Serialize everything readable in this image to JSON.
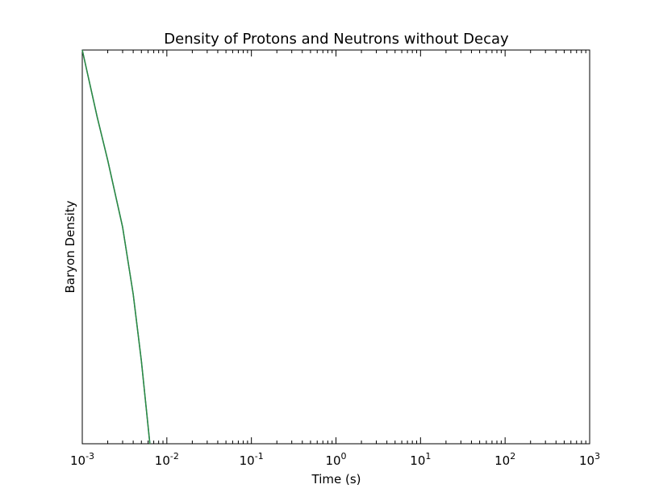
{
  "chart_data": {
    "type": "line",
    "title": "Density of Protons and Neutrons without Decay",
    "xlabel": "Time (s)",
    "ylabel": "Baryon Density",
    "xscale": "log",
    "xlim": [
      0.001,
      1000
    ],
    "yticks_labeled": false,
    "grid": false,
    "legend": "none",
    "x_tick_labels": [
      {
        "value": 0.001,
        "base": "10",
        "exp": "-3"
      },
      {
        "value": 0.01,
        "base": "10",
        "exp": "-2"
      },
      {
        "value": 0.1,
        "base": "10",
        "exp": "-1"
      },
      {
        "value": 1,
        "base": "10",
        "exp": "0"
      },
      {
        "value": 10,
        "base": "10",
        "exp": "1"
      },
      {
        "value": 100,
        "base": "10",
        "exp": "2"
      },
      {
        "value": 1000,
        "base": "10",
        "exp": "3"
      }
    ],
    "series": [
      {
        "color": "#1f6fb4",
        "x": [
          0.001,
          0.0015,
          0.002,
          0.003,
          0.004,
          0.005,
          0.0063
        ],
        "y_fraction_of_axis": [
          1.0,
          0.83,
          0.72,
          0.55,
          0.38,
          0.21,
          0.0
        ]
      },
      {
        "color": "#2e8b3e",
        "x": [
          0.001,
          0.0015,
          0.002,
          0.003,
          0.004,
          0.005,
          0.0063
        ],
        "y_fraction_of_axis": [
          1.0,
          0.83,
          0.72,
          0.55,
          0.38,
          0.21,
          0.0
        ]
      }
    ]
  }
}
